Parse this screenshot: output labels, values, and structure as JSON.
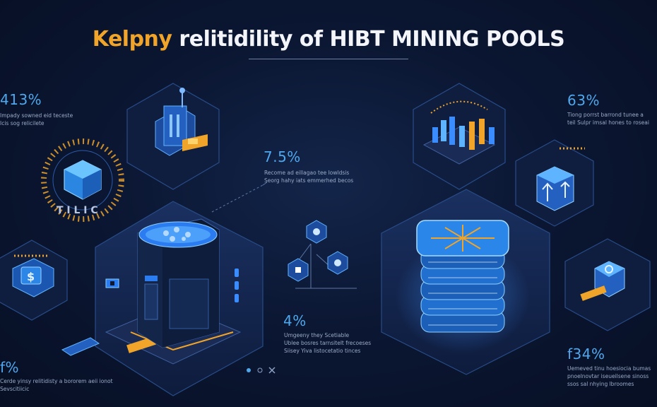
{
  "title": {
    "part1": "Kelpny ",
    "part2": "relitidility of HIBT MINING POOLS"
  },
  "colors": {
    "accent_orange": "#f0a429",
    "accent_blue": "#4fa8ee",
    "panel": "#13254a",
    "background": "#0b1733"
  },
  "stats": [
    {
      "value": "413%",
      "desc": "Impady sowned eid teceste\nIcis sog relicilete"
    },
    {
      "value": "7.5%",
      "desc": "Recome ad eillagao tee Iowldsis\nSeorg hahy iats emmerhed becos"
    },
    {
      "value": "63%",
      "desc": "Tiong porrst barrond tunee a\nteil Sulpr imsal hones to roseai"
    },
    {
      "value": "4%",
      "desc": "Umgeeny they Scetiable\nUblee bosres tarnsitelt frecoeses\nSiisey Yiva listocetatio tinces"
    },
    {
      "value": "f34%",
      "desc": "Uemeved tinu hoesiocia bumas\npnoelnovtar iseueilsene sinoss\nssos sal nhying lbroomes"
    },
    {
      "value": "f%",
      "desc": "Cerde yinsy relitidisty a bororem aeii ionot\nSevscitiicic"
    }
  ],
  "cube_label": "T I L I C",
  "icons": [
    "server-icon",
    "cube-icon",
    "network-icon",
    "dollar-icon",
    "storage-icon",
    "chart-icon",
    "arrow-up-icon",
    "box-icon",
    "pin-icon",
    "close-icon"
  ]
}
